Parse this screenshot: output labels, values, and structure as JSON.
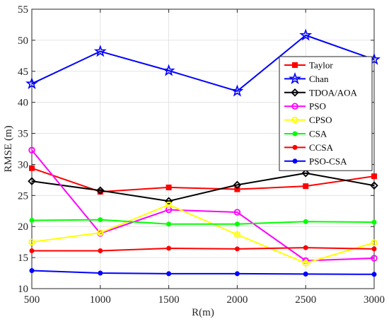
{
  "chart_data": {
    "type": "line",
    "title": "",
    "xlabel": "R(m)",
    "ylabel": "RMSE (m)",
    "x": [
      500,
      1000,
      1500,
      2000,
      2500,
      3000
    ],
    "xlim": [
      500,
      3000
    ],
    "ylim": [
      10,
      55
    ],
    "xticks": [
      500,
      1000,
      1500,
      2000,
      2500,
      3000
    ],
    "yticks": [
      10,
      15,
      20,
      25,
      30,
      35,
      40,
      45,
      50,
      55
    ],
    "grid": true,
    "legend_position": "right",
    "series": [
      {
        "name": "Taylor",
        "color": "#ff0000",
        "marker": "square",
        "values": [
          29.4,
          25.6,
          26.3,
          26.0,
          26.5,
          28.1
        ]
      },
      {
        "name": "Chan",
        "color": "#0000ff",
        "marker": "star",
        "values": [
          43.0,
          48.2,
          45.1,
          41.8,
          50.8,
          46.9
        ]
      },
      {
        "name": "TDOA/AOA",
        "color": "#000000",
        "marker": "diamond",
        "values": [
          27.3,
          25.8,
          24.1,
          26.7,
          28.6,
          26.6
        ]
      },
      {
        "name": "PSO",
        "color": "#ff00ff",
        "marker": "circle",
        "values": [
          32.3,
          18.9,
          22.7,
          22.3,
          14.5,
          14.9
        ]
      },
      {
        "name": "CPSO",
        "color": "#ffff00",
        "marker": "circle",
        "values": [
          17.5,
          19.0,
          23.5,
          18.7,
          14.1,
          17.4
        ]
      },
      {
        "name": "CSA",
        "color": "#00ff00",
        "marker": "dot",
        "values": [
          21.0,
          21.1,
          20.4,
          20.4,
          20.8,
          20.7
        ]
      },
      {
        "name": "CCSA",
        "color": "#ff0000",
        "marker": "dot",
        "values": [
          16.1,
          16.1,
          16.5,
          16.4,
          16.6,
          16.4
        ]
      },
      {
        "name": "PSO-CSA",
        "color": "#0000ff",
        "marker": "dot",
        "values": [
          12.9,
          12.5,
          12.4,
          12.4,
          12.35,
          12.3
        ]
      }
    ]
  }
}
